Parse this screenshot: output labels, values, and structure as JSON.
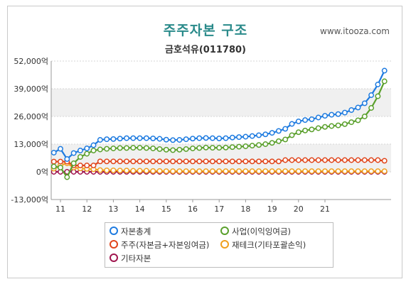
{
  "header": {
    "title": "주주자본 구조",
    "subtitle": "금호석유(011780)",
    "site": "www.itooza.com"
  },
  "colors": {
    "series": [
      "#1e7be0",
      "#5aa02c",
      "#e0451b",
      "#f0a01e",
      "#a0154e"
    ],
    "plot_band": "#f0f0f0"
  },
  "chart_data": {
    "type": "line",
    "title": "주주자본 구조",
    "subtitle": "금호석유(011780)",
    "ylim": [
      -13000,
      52000
    ],
    "yticks": [
      -13000,
      0,
      13000,
      26000,
      39000,
      52000
    ],
    "ytick_labels": [
      "-13,000억",
      "0억",
      "13,000억",
      "26,000억",
      "39,000억",
      "52,000억"
    ],
    "xticks": [
      11,
      12,
      13,
      14,
      15,
      16,
      17,
      18,
      19,
      20,
      21
    ],
    "x_start": 2010.0,
    "x_step": 0.25,
    "legend_position": "bottom",
    "series": [
      {
        "name": "자본총계",
        "values": [
          9000,
          10800,
          6000,
          8800,
          10000,
          11000,
          12500,
          15000,
          15300,
          15400,
          15600,
          15800,
          15800,
          15800,
          15800,
          15700,
          15500,
          15100,
          14900,
          15000,
          15300,
          15600,
          15800,
          15900,
          15800,
          15700,
          15800,
          16100,
          16300,
          16500,
          16800,
          17200,
          17600,
          18300,
          19200,
          20200,
          22500,
          23700,
          24300,
          24700,
          25500,
          26300,
          26800,
          27100,
          27800,
          29000,
          30200,
          32200,
          36000,
          41000,
          47500
        ]
      },
      {
        "name": "사업(이익잉여금)",
        "values": [
          2500,
          2000,
          -2500,
          4000,
          7000,
          8500,
          10000,
          10500,
          10800,
          11000,
          11200,
          11200,
          11300,
          11300,
          11200,
          11000,
          10700,
          10400,
          10200,
          10400,
          10700,
          11000,
          11200,
          11400,
          11300,
          11300,
          11400,
          11600,
          11800,
          12000,
          12300,
          12600,
          13000,
          13600,
          14400,
          15200,
          17200,
          18600,
          19400,
          19900,
          20500,
          21100,
          21500,
          21800,
          22400,
          23300,
          24200,
          26000,
          30000,
          35500,
          42500
        ]
      },
      {
        "name": "주주(자본금+자본잉여금)",
        "values": [
          4800,
          4800,
          4800,
          3000,
          3000,
          3000,
          3000,
          4900,
          4900,
          4900,
          4900,
          4900,
          4900,
          4900,
          4900,
          4900,
          4900,
          4900,
          4900,
          4900,
          4900,
          4900,
          4900,
          4900,
          4900,
          4900,
          4900,
          4900,
          4900,
          4900,
          4900,
          4900,
          4900,
          4900,
          4900,
          5500,
          5500,
          5500,
          5500,
          5500,
          5500,
          5500,
          5500,
          5500,
          5500,
          5500,
          5500,
          5500,
          5500,
          5500,
          5200
        ]
      },
      {
        "name": "재테크(기타포괄손익)",
        "values": [
          1500,
          3200,
          4000,
          2000,
          1600,
          1400,
          1200,
          800,
          700,
          700,
          600,
          600,
          500,
          500,
          500,
          400,
          400,
          300,
          300,
          300,
          300,
          300,
          300,
          300,
          300,
          300,
          300,
          300,
          300,
          300,
          300,
          300,
          300,
          300,
          300,
          300,
          300,
          300,
          300,
          300,
          300,
          300,
          300,
          300,
          300,
          300,
          300,
          300,
          300,
          300,
          300
        ]
      },
      {
        "name": "기타자본",
        "values": [
          0,
          0,
          0,
          0,
          0,
          0,
          0,
          0,
          0,
          0,
          0,
          0,
          0,
          0,
          0,
          0,
          0,
          0,
          0,
          0,
          0,
          0,
          0,
          0,
          0,
          0,
          0,
          0,
          0,
          0,
          0,
          0,
          0,
          0,
          0,
          0,
          0,
          0,
          0,
          0,
          0,
          0,
          0,
          0,
          0,
          0,
          0,
          0,
          0,
          0,
          0
        ]
      }
    ]
  },
  "legend": {
    "items": [
      "자본총계",
      "사업(이익잉여금)",
      "주주(자본금+자본잉여금)",
      "재테크(기타포괄손익)",
      "기타자본"
    ]
  }
}
